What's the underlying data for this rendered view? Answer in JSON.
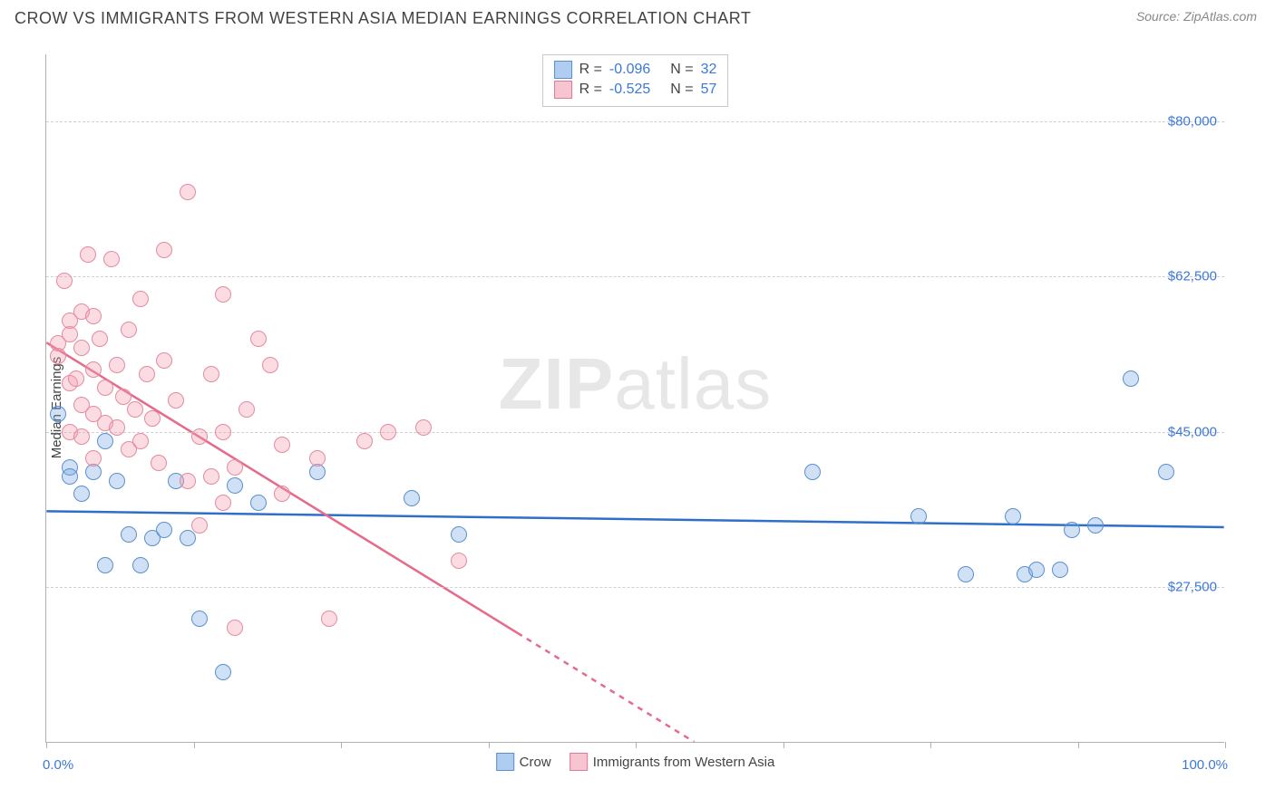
{
  "header": {
    "title": "CROW VS IMMIGRANTS FROM WESTERN ASIA MEDIAN EARNINGS CORRELATION CHART",
    "source_prefix": "Source: ",
    "source_name": "ZipAtlas.com"
  },
  "chart": {
    "type": "scatter",
    "ylabel": "Median Earnings",
    "watermark_a": "ZIP",
    "watermark_b": "atlas",
    "background_color": "#ffffff",
    "grid_color": "#d0d0d0",
    "axis_color": "#b0b0b0",
    "label_color": "#3b78d8",
    "xlim": [
      0,
      100
    ],
    "ylim": [
      10000,
      87500
    ],
    "xticks": [
      0,
      12.5,
      25,
      37.5,
      50,
      62.5,
      75,
      87.5,
      100
    ],
    "xaxis_start_label": "0.0%",
    "xaxis_end_label": "100.0%",
    "yticks": [
      {
        "v": 27500,
        "label": "$27,500"
      },
      {
        "v": 45000,
        "label": "$45,000"
      },
      {
        "v": 62500,
        "label": "$62,500"
      },
      {
        "v": 80000,
        "label": "$80,000"
      }
    ],
    "marker_radius": 9,
    "series": [
      {
        "name": "Crow",
        "color_fill": "rgba(120,170,225,0.35)",
        "color_stroke": "#5b8fd0",
        "swatch_fill": "#aecdf0",
        "swatch_border": "#5b8fd0",
        "stats": {
          "R": "-0.096",
          "N": "32"
        },
        "trend": {
          "x1": 0,
          "y1": 36000,
          "x2": 100,
          "y2": 34200,
          "color": "#2f6fc9",
          "width": 2.5,
          "dash_after_x": null
        },
        "points": [
          [
            1,
            47000
          ],
          [
            2,
            41000
          ],
          [
            2,
            40000
          ],
          [
            3,
            38000
          ],
          [
            4,
            40500
          ],
          [
            5,
            44000
          ],
          [
            5,
            30000
          ],
          [
            6,
            39500
          ],
          [
            7,
            33500
          ],
          [
            8,
            30000
          ],
          [
            9,
            33000
          ],
          [
            10,
            34000
          ],
          [
            11,
            39500
          ],
          [
            12,
            33000
          ],
          [
            13,
            24000
          ],
          [
            15,
            18000
          ],
          [
            16,
            39000
          ],
          [
            18,
            37000
          ],
          [
            23,
            40500
          ],
          [
            31,
            37500
          ],
          [
            35,
            33500
          ],
          [
            65,
            40500
          ],
          [
            74,
            35500
          ],
          [
            78,
            29000
          ],
          [
            82,
            35500
          ],
          [
            83,
            29000
          ],
          [
            84,
            29500
          ],
          [
            86,
            29500
          ],
          [
            87,
            34000
          ],
          [
            89,
            34500
          ],
          [
            92,
            51000
          ],
          [
            95,
            40500
          ]
        ]
      },
      {
        "name": "Immigrants from Western Asia",
        "color_fill": "rgba(245,155,175,0.35)",
        "color_stroke": "#e48aa0",
        "swatch_fill": "#f7c4d1",
        "swatch_border": "#e07a94",
        "stats": {
          "R": "-0.525",
          "N": "57"
        },
        "trend": {
          "x1": 0,
          "y1": 55000,
          "x2": 55,
          "y2": 10000,
          "color": "#e66a8a",
          "width": 2.5,
          "dash_after_x": 40
        },
        "points": [
          [
            1,
            55000
          ],
          [
            1,
            53500
          ],
          [
            1.5,
            62000
          ],
          [
            2,
            50500
          ],
          [
            2,
            57500
          ],
          [
            2,
            56000
          ],
          [
            2,
            45000
          ],
          [
            2.5,
            51000
          ],
          [
            3,
            58500
          ],
          [
            3,
            54500
          ],
          [
            3,
            48000
          ],
          [
            3,
            44500
          ],
          [
            3.5,
            65000
          ],
          [
            4,
            58000
          ],
          [
            4,
            52000
          ],
          [
            4,
            47000
          ],
          [
            4,
            42000
          ],
          [
            4.5,
            55500
          ],
          [
            5,
            50000
          ],
          [
            5,
            46000
          ],
          [
            5.5,
            64500
          ],
          [
            6,
            52500
          ],
          [
            6,
            45500
          ],
          [
            6.5,
            49000
          ],
          [
            7,
            56500
          ],
          [
            7,
            43000
          ],
          [
            7.5,
            47500
          ],
          [
            8,
            60000
          ],
          [
            8,
            44000
          ],
          [
            8.5,
            51500
          ],
          [
            9,
            46500
          ],
          [
            9.5,
            41500
          ],
          [
            10,
            65500
          ],
          [
            10,
            53000
          ],
          [
            11,
            48500
          ],
          [
            12,
            72000
          ],
          [
            12,
            39500
          ],
          [
            13,
            44500
          ],
          [
            13,
            34500
          ],
          [
            14,
            40000
          ],
          [
            14,
            51500
          ],
          [
            15,
            60500
          ],
          [
            15,
            45000
          ],
          [
            15,
            37000
          ],
          [
            16,
            41000
          ],
          [
            16,
            23000
          ],
          [
            17,
            47500
          ],
          [
            18,
            55500
          ],
          [
            19,
            52500
          ],
          [
            20,
            43500
          ],
          [
            20,
            38000
          ],
          [
            23,
            42000
          ],
          [
            24,
            24000
          ],
          [
            27,
            44000
          ],
          [
            29,
            45000
          ],
          [
            32,
            45500
          ],
          [
            35,
            30500
          ]
        ]
      }
    ],
    "legend_labels": [
      "Crow",
      "Immigrants from Western Asia"
    ],
    "stats_labels": {
      "R": "R =",
      "N": "N ="
    }
  }
}
